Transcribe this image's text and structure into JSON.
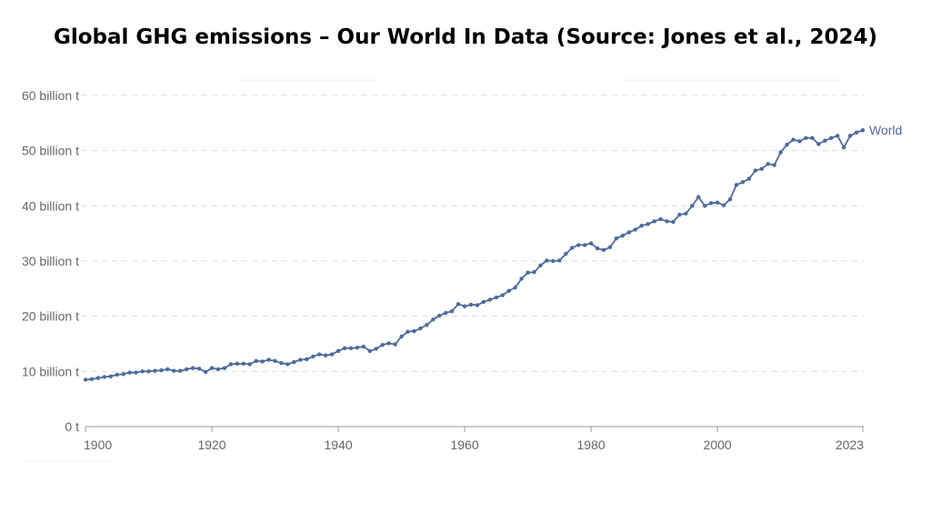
{
  "chart_data": {
    "type": "line",
    "title": "Global GHG emissions – Our World In Data (Source: Jones et al., 2024)",
    "xlabel": "",
    "ylabel": "",
    "xlim": [
      1900,
      2023
    ],
    "ylim": [
      0,
      60
    ],
    "x_ticks": [
      {
        "value": 1900,
        "label": "1900"
      },
      {
        "value": 1920,
        "label": "1920"
      },
      {
        "value": 1940,
        "label": "1940"
      },
      {
        "value": 1960,
        "label": "1960"
      },
      {
        "value": 1980,
        "label": "1980"
      },
      {
        "value": 2000,
        "label": "2000"
      },
      {
        "value": 2023,
        "label": "2023"
      }
    ],
    "y_ticks": [
      {
        "value": 0,
        "label": "0 t"
      },
      {
        "value": 10,
        "label": "10 billion t"
      },
      {
        "value": 20,
        "label": "20 billion t"
      },
      {
        "value": 30,
        "label": "30 billion t"
      },
      {
        "value": 40,
        "label": "40 billion t"
      },
      {
        "value": 50,
        "label": "50 billion t"
      },
      {
        "value": 60,
        "label": "60 billion t"
      }
    ],
    "grid": "horizontal dashed",
    "line_color": "#4c6a9c",
    "series": [
      {
        "name": "World",
        "x_start": 1900,
        "values": [
          8.5,
          8.6,
          8.8,
          9.0,
          9.1,
          9.4,
          9.5,
          9.8,
          9.8,
          10.0,
          10.0,
          10.1,
          10.2,
          10.4,
          10.1,
          10.1,
          10.4,
          10.6,
          10.5,
          9.9,
          10.6,
          10.4,
          10.6,
          11.3,
          11.4,
          11.4,
          11.3,
          11.9,
          11.8,
          12.1,
          11.9,
          11.5,
          11.3,
          11.7,
          12.1,
          12.2,
          12.7,
          13.1,
          12.9,
          13.1,
          13.7,
          14.2,
          14.2,
          14.3,
          14.5,
          13.7,
          14.1,
          14.8,
          15.1,
          14.9,
          16.3,
          17.2,
          17.3,
          17.8,
          18.4,
          19.4,
          20.1,
          20.6,
          20.9,
          22.2,
          21.8,
          22.1,
          22.0,
          22.6,
          23.0,
          23.4,
          23.8,
          24.6,
          25.2,
          26.8,
          27.9,
          28.0,
          29.2,
          30.1,
          30.0,
          30.1,
          31.3,
          32.4,
          32.9,
          32.9,
          33.2,
          32.3,
          32.0,
          32.5,
          34.1,
          34.6,
          35.2,
          35.7,
          36.4,
          36.7,
          37.2,
          37.6,
          37.2,
          37.1,
          38.4,
          38.6,
          40.0,
          41.6,
          40.0,
          40.5,
          40.6,
          40.1,
          41.2,
          43.8,
          44.3,
          44.9,
          46.4,
          46.7,
          47.6,
          47.4,
          49.7,
          51.1,
          52.0,
          51.7,
          52.3,
          52.3,
          51.2,
          51.8,
          52.3,
          52.7,
          50.6,
          52.7,
          53.3,
          53.7
        ]
      }
    ]
  }
}
